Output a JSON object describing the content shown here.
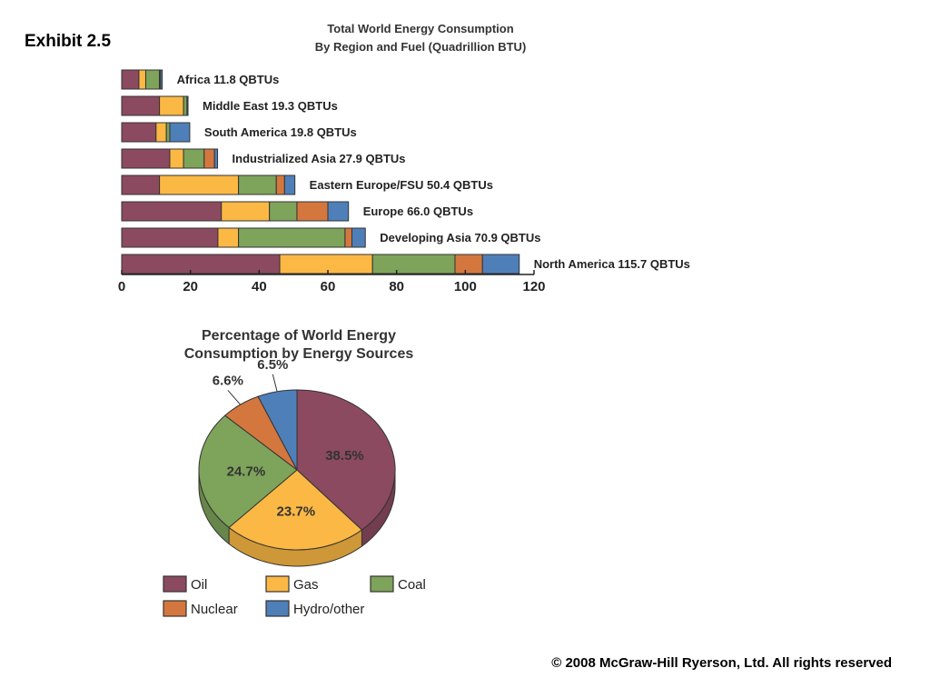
{
  "slide": {
    "exhibit": "Exhibit 2.5",
    "copyright": "© 2008 McGraw-Hill Ryerson, Ltd. All rights reserved"
  },
  "colors": {
    "Oil": "#8b4a60",
    "Gas": "#fbb844",
    "Coal": "#7ea35a",
    "Nuclear": "#d4773f",
    "Hydro/other": "#4f7fb8",
    "outline": "#333333"
  },
  "chart_data": [
    {
      "type": "bar",
      "orientation": "horizontal",
      "stacked": true,
      "title": [
        "Total World Energy Consumption",
        "By Region and Fuel (Quadrillion BTU)"
      ],
      "categories": [
        "Africa",
        "Middle East",
        "South America",
        "Industrialized Asia",
        "Eastern Europe/FSU",
        "Europe",
        "Developing Asia",
        "North America"
      ],
      "bar_labels": [
        "Africa  11.8 QBTUs",
        "Middle East  19.3 QBTUs",
        "South America  19.8 QBTUs",
        "Industrialized Asia  27.9 QBTUs",
        "Eastern Europe/FSU  50.4 QBTUs",
        "Europe  66.0 QBTUs",
        "Developing Asia  70.9 QBTUs",
        "North America  115.7 QBTUs"
      ],
      "series": [
        {
          "name": "Oil",
          "values": [
            5,
            11,
            10,
            14,
            11,
            29,
            28,
            46
          ]
        },
        {
          "name": "Gas",
          "values": [
            2,
            7,
            3,
            4,
            23,
            14,
            6,
            27
          ]
        },
        {
          "name": "Coal",
          "values": [
            4,
            1,
            1,
            6,
            11,
            8,
            31,
            24
          ]
        },
        {
          "name": "Nuclear",
          "values": [
            0.3,
            0,
            0,
            3,
            2.4,
            9,
            2,
            8
          ]
        },
        {
          "name": "Hydro/other",
          "values": [
            0.5,
            0.3,
            5.8,
            0.9,
            3,
            6,
            3.9,
            10.7
          ]
        }
      ],
      "xlim": [
        0,
        120
      ],
      "xticks": [
        "0",
        "20",
        "40",
        "60",
        "80",
        "100",
        "120"
      ],
      "grid": false
    },
    {
      "type": "pie",
      "title": [
        "Percentage of World Energy",
        "Consumption by Energy Sources"
      ],
      "slices": [
        {
          "label": "Oil",
          "value": 38.5,
          "text": "38.5%"
        },
        {
          "label": "Gas",
          "value": 23.7,
          "text": "23.7%"
        },
        {
          "label": "Coal",
          "value": 24.7,
          "text": "24.7%"
        },
        {
          "label": "Nuclear",
          "value": 6.6,
          "text": "6.6%"
        },
        {
          "label": "Hydro/other",
          "value": 6.5,
          "text": "6.5%"
        }
      ],
      "legend": {
        "placement": "bottom",
        "items": [
          "Oil",
          "Gas",
          "Coal",
          "Nuclear",
          "Hydro/other"
        ]
      }
    }
  ]
}
